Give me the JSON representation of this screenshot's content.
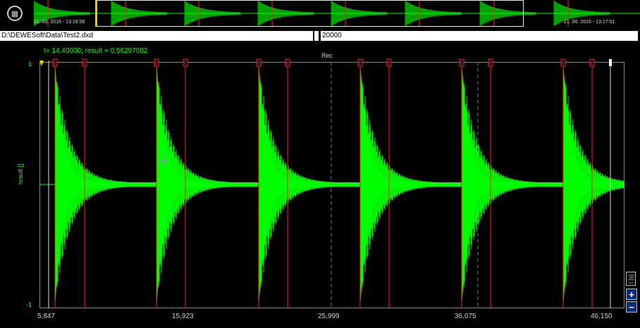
{
  "toolbar": {
    "left_icon": "briefcase-icon",
    "right_icon": "clock-icon"
  },
  "overview": {
    "start_time": "21. 06. 2016 - 13:16:56",
    "end_time": "21. 06. 2016 - 13:17:51"
  },
  "file": {
    "path": "D:\\DEWESoft\\Data\\Test2.dxd",
    "value_field": "20000"
  },
  "readout": "t= 14,40000; result = 0,56297082",
  "recording_label": "Rec",
  "y_axis": {
    "label": "result []",
    "max": "1",
    "min": "-1"
  },
  "x_axis": {
    "label": "t [s]",
    "ticks": [
      "5,847",
      "15,923",
      "25,999",
      "36,075",
      "46,150"
    ]
  },
  "markers": {
    "tag": "E"
  },
  "colors": {
    "signal": "#00ff00",
    "marker": "#ff2020",
    "accent": "#e8d000"
  },
  "zoom": {
    "in": "+",
    "out": "−"
  }
}
